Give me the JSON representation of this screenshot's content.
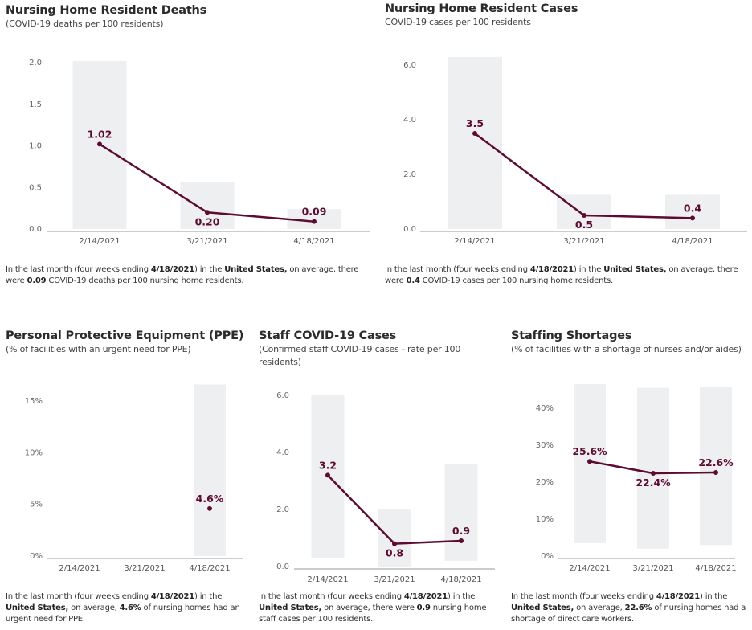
{
  "colors": {
    "line": "#5e0b32",
    "bar": "#eeeff1",
    "axis": "#999999"
  },
  "panels": {
    "deaths": {
      "title": "Nursing Home Resident Deaths",
      "subtitle": "(COVID-19 deaths per 100 residents)",
      "caption": {
        "pre": "In the last month (four weeks ending ",
        "date": "4/18/2021",
        "mid1": ") in the ",
        "place": "United States,",
        "mid2": " on average, there were ",
        "value": "0.09",
        "post": " COVID-19 deaths per 100 nursing home residents."
      }
    },
    "cases": {
      "title": "Nursing Home Resident Cases",
      "subtitle": "COVID-19 cases per 100 residents",
      "caption": {
        "pre": "In the last month (four weeks ending ",
        "date": "4/18/2021",
        "mid1": ") in the ",
        "place": "United States,",
        "mid2": " on average, there were ",
        "value": "0.4",
        "post": " COVID-19 cases per 100 nursing home residents."
      }
    },
    "ppe": {
      "title": "Personal Protective Equipment (PPE)",
      "subtitle": "(% of facilities with an urgent need for PPE)",
      "caption": {
        "pre": "In the last month (four weeks ending ",
        "date": "4/18/2021",
        "mid1": ") in the ",
        "place": "United States,",
        "mid2": " on average, ",
        "value": "4.6%",
        "post": " of nursing homes had an urgent need for PPE."
      }
    },
    "staff": {
      "title": "Staff COVID-19 Cases",
      "subtitle": "(Confirmed staff COVID-19 cases - rate per 100 residents)",
      "caption": {
        "pre": "In the last month (four weeks ending ",
        "date": "4/18/2021",
        "mid1": ") in the ",
        "place": "United States,",
        "mid2": " on average, there were ",
        "value": "0.9",
        "post": " nursing home staff cases per 100 residents."
      }
    },
    "shortage": {
      "title": "Staffing Shortages",
      "subtitle": "(% of facilities with a shortage of nurses and/or aides)",
      "caption": {
        "pre": "In the last month (four weeks ending ",
        "date": "4/18/2021",
        "mid1": ") in the ",
        "place": "United States,",
        "mid2": " on average, ",
        "value": "22.6%",
        "post": " of nursing homes had a shortage of direct care workers."
      }
    }
  },
  "chart_data": [
    {
      "id": "deaths",
      "type": "bar+line",
      "title": "Nursing Home Resident Deaths",
      "subtitle": "(COVID-19 deaths per 100 residents)",
      "categories": [
        "2/14/2021",
        "3/21/2021",
        "4/18/2021"
      ],
      "yticks": [
        0,
        0.5,
        1.0,
        1.5,
        2.0
      ],
      "ytick_labels": [
        "0.0",
        "0.5",
        "1.0",
        "1.5",
        "2.0"
      ],
      "ylim": [
        0,
        2.0
      ],
      "range_bars": [
        [
          0,
          2.02
        ],
        [
          0,
          0.57
        ],
        [
          0,
          0.24
        ]
      ],
      "series": [
        {
          "name": "United States",
          "values": [
            1.02,
            0.2,
            0.09
          ],
          "labels": [
            "1.02",
            "0.20",
            "0.09"
          ],
          "label_pos": [
            "above",
            "below",
            "above"
          ]
        }
      ]
    },
    {
      "id": "cases",
      "type": "bar+line",
      "title": "Nursing Home Resident Cases",
      "subtitle": "COVID-19 cases per 100 residents",
      "categories": [
        "2/14/2021",
        "3/21/2021",
        "4/18/2021"
      ],
      "yticks": [
        0,
        2,
        4,
        6
      ],
      "ytick_labels": [
        "0.0",
        "2.0",
        "4.0",
        "6.0"
      ],
      "ylim": [
        0,
        6.0
      ],
      "range_bars": [
        [
          0,
          6.3
        ],
        [
          0,
          1.25
        ],
        [
          0,
          1.25
        ]
      ],
      "series": [
        {
          "name": "United States",
          "values": [
            3.5,
            0.5,
            0.4
          ],
          "labels": [
            "3.5",
            "0.5",
            "0.4"
          ],
          "label_pos": [
            "above",
            "below",
            "above"
          ]
        }
      ]
    },
    {
      "id": "ppe",
      "type": "bar+line",
      "title": "Personal Protective Equipment (PPE)",
      "subtitle": "(% of facilities with an urgent need for PPE)",
      "categories": [
        "2/14/2021",
        "3/21/2021",
        "4/18/2021"
      ],
      "yticks": [
        0,
        5,
        10,
        15
      ],
      "ytick_labels": [
        "0%",
        "5%",
        "10%",
        "15%"
      ],
      "ylim": [
        0,
        15
      ],
      "range_bars": [
        null,
        null,
        [
          0,
          16.6
        ]
      ],
      "series": [
        {
          "name": "United States",
          "values": [
            null,
            null,
            4.6
          ],
          "labels": [
            "",
            "",
            "4.6%"
          ],
          "label_pos": [
            "above",
            "above",
            "above"
          ]
        }
      ]
    },
    {
      "id": "staff",
      "type": "bar+line",
      "title": "Staff COVID-19 Cases",
      "subtitle": "(Confirmed staff COVID-19 cases - rate per 100 residents)",
      "categories": [
        "2/14/2021",
        "3/21/2021",
        "4/18/2021"
      ],
      "yticks": [
        0,
        2,
        4,
        6
      ],
      "ytick_labels": [
        "0.0",
        "2.0",
        "4.0",
        "6.0"
      ],
      "ylim": [
        0,
        6.0
      ],
      "range_bars": [
        [
          0.3,
          6.0
        ],
        [
          0,
          2.0
        ],
        [
          0.2,
          3.6
        ]
      ],
      "series": [
        {
          "name": "United States",
          "values": [
            3.2,
            0.8,
            0.9
          ],
          "labels": [
            "3.2",
            "0.8",
            "0.9"
          ],
          "label_pos": [
            "above",
            "below",
            "above"
          ]
        }
      ]
    },
    {
      "id": "shortage",
      "type": "bar+line",
      "title": "Staffing Shortages",
      "subtitle": "(% of facilities with a shortage of nurses and/or aides)",
      "categories": [
        "2/14/2021",
        "3/21/2021",
        "4/18/2021"
      ],
      "yticks": [
        0,
        10,
        20,
        30,
        40
      ],
      "ytick_labels": [
        "0%",
        "10%",
        "20%",
        "30%",
        "40%"
      ],
      "ylim": [
        0,
        40
      ],
      "range_bars": [
        [
          3.5,
          46.5
        ],
        [
          2.0,
          45.5
        ],
        [
          3.0,
          45.8
        ]
      ],
      "series": [
        {
          "name": "United States",
          "values": [
            25.6,
            22.4,
            22.6
          ],
          "labels": [
            "25.6%",
            "22.4%",
            "22.6%"
          ],
          "label_pos": [
            "above",
            "below",
            "above"
          ]
        }
      ]
    }
  ]
}
